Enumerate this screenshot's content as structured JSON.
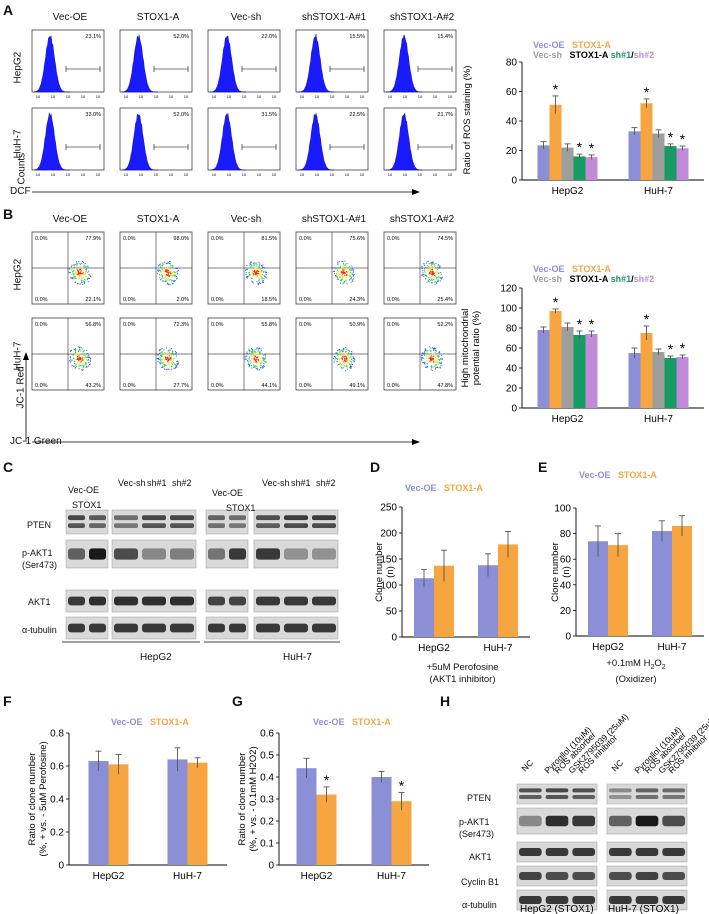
{
  "panel_letters": [
    "A",
    "B",
    "C",
    "D",
    "E",
    "F",
    "G",
    "H"
  ],
  "flow_columns": [
    "Vec-OE",
    "STOX1-A",
    "Vec-sh",
    "shSTOX1-A#1",
    "shSTOX1-A#2"
  ],
  "flow_rows": [
    "HepG2",
    "HuH-7"
  ],
  "panelA": {
    "ylab": "Counts",
    "xlab": "DCF",
    "percents": [
      [
        "23.1%",
        "52.0%",
        "22.0%",
        "15.5%",
        "15.4%"
      ],
      [
        "33.0%",
        "52.0%",
        "31.5%",
        "22.5%",
        "21.7%"
      ]
    ],
    "tick": "10"
  },
  "panelB": {
    "ylab": "JC-1 Red",
    "xlab": "JC-1 Green",
    "quads": [
      [
        [
          "0.0%",
          "77.9%",
          "0.0%",
          "22.1%"
        ],
        [
          "0.0%",
          "98.0%",
          "0.0%",
          "2.0%"
        ],
        [
          "0.0%",
          "81.5%",
          "0.0%",
          "18.5%"
        ],
        [
          "0.0%",
          "75.6%",
          "0.0%",
          "24.3%"
        ],
        [
          "0.0%",
          "74.5%",
          "0.0%",
          "25.4%"
        ]
      ],
      [
        [
          "0.0%",
          "56.8%",
          "0.0%",
          "43.2%"
        ],
        [
          "0.0%",
          "72.3%",
          "0.0%",
          "27.7%"
        ],
        [
          "0.0%",
          "55.8%",
          "0.0%",
          "44.1%"
        ],
        [
          "0.0%",
          "50.9%",
          "0.0%",
          "49.1%"
        ],
        [
          "0.0%",
          "52.2%",
          "0.0%",
          "47.8%"
        ]
      ]
    ]
  },
  "legend5": {
    "a": "Vec-OE",
    "b": "STOX1-A",
    "c": "Vec-sh",
    "d": "STOX1-A",
    "e": "sh#1",
    "f": "/",
    "g": "sh#2"
  },
  "legend2": {
    "a": "Vec-OE",
    "b": "STOX1-A"
  },
  "colors": {
    "blue": "#8a8fd6",
    "orange": "#f7a540",
    "gray": "#9e9e9e",
    "green": "#169b62",
    "purple": "#c08bd8",
    "hist": "#1a1aff"
  },
  "panelC": {
    "groups": [
      "HepG2",
      "HuH-7"
    ],
    "lanes_left": [
      "Vec-OE",
      "STOX1",
      "Vec-sh",
      "sh#1",
      "sh#2"
    ],
    "lanes_right": [
      "Vec-OE",
      "STOX1",
      "Vec-sh",
      "sh#1",
      "sh#2"
    ],
    "rows": [
      "PTEN",
      "p-AKT1",
      "(Ser473)",
      "AKT1",
      "α-tubulin"
    ]
  },
  "panelD_note": [
    "+5uM Perofosine",
    "(AKT1 inhibitor)"
  ],
  "panelE_note": [
    "+0.1mM H",
    "2",
    "O",
    "2",
    "(Oxidizer)"
  ],
  "panelH": {
    "lanes": [
      "NC",
      "Pyrogllol (10uM)",
      "ROS absorber",
      "GSK2795039 (25uM)",
      "ROS inhibitor"
    ],
    "rows": [
      "PTEN",
      "p-AKT1",
      "(Ser473)",
      "AKT1",
      "Cyclin B1",
      "α-tubulin"
    ],
    "groups": [
      "HepG2 (STOX1)",
      "HuH-7 (STOX1)"
    ]
  },
  "star": "*",
  "chart_data": [
    {
      "id": "A",
      "type": "bar",
      "title": "",
      "ylabel": "Ratio of ROS staining (%)",
      "categories": [
        "HepG2",
        "HuH-7"
      ],
      "ylim": [
        0,
        80
      ],
      "yticks": [
        0,
        20,
        40,
        60,
        80
      ],
      "series": [
        {
          "name": "Vec-OE",
          "values": [
            23.5,
            33
          ],
          "err": [
            2.5,
            2.5
          ]
        },
        {
          "name": "STOX1-A",
          "values": [
            51,
            52
          ],
          "err": [
            6,
            3
          ]
        },
        {
          "name": "Vec-sh",
          "values": [
            22,
            31.5
          ],
          "err": [
            2.5,
            2.5
          ]
        },
        {
          "name": "sh#1",
          "values": [
            16,
            23
          ],
          "err": [
            1.5,
            1.5
          ]
        },
        {
          "name": "sh#2",
          "values": [
            15.5,
            21.5
          ],
          "err": [
            1.5,
            1.5
          ]
        }
      ],
      "stars": [
        [
          0,
          1,
          0,
          1,
          1
        ],
        [
          0,
          1,
          0,
          1,
          1
        ]
      ]
    },
    {
      "id": "B",
      "type": "bar",
      "title": "",
      "ylabel": "High mitochondrial potential ratio (%)",
      "categories": [
        "HepG2",
        "HuH-7"
      ],
      "ylim": [
        0,
        120
      ],
      "yticks": [
        0,
        20,
        40,
        60,
        80,
        100,
        120
      ],
      "series": [
        {
          "name": "Vec-OE",
          "values": [
            78,
            55
          ],
          "err": [
            3,
            5
          ]
        },
        {
          "name": "STOX1-A",
          "values": [
            97,
            75
          ],
          "err": [
            2,
            7
          ]
        },
        {
          "name": "Vec-sh",
          "values": [
            81,
            56
          ],
          "err": [
            4,
            3
          ]
        },
        {
          "name": "sh#1",
          "values": [
            73,
            50
          ],
          "err": [
            4,
            2
          ]
        },
        {
          "name": "sh#2",
          "values": [
            74,
            51
          ],
          "err": [
            3,
            2
          ]
        }
      ],
      "stars": [
        [
          0,
          1,
          0,
          1,
          1
        ],
        [
          0,
          1,
          0,
          1,
          1
        ]
      ]
    },
    {
      "id": "D",
      "type": "bar",
      "ylabel": "Clone number (n)",
      "categories": [
        "HepG2",
        "HuH-7"
      ],
      "ylim": [
        0,
        250
      ],
      "yticks": [
        0,
        50,
        100,
        150,
        200,
        250
      ],
      "series": [
        {
          "name": "Vec-OE",
          "values": [
            113,
            138
          ],
          "err": [
            17,
            22
          ]
        },
        {
          "name": "STOX1-A",
          "values": [
            137,
            178
          ],
          "err": [
            30,
            25
          ]
        }
      ],
      "stars": [
        [
          0,
          0
        ],
        [
          0,
          0
        ]
      ]
    },
    {
      "id": "E",
      "type": "bar",
      "ylabel": "Clone number (n)",
      "categories": [
        "HepG2",
        "HuH-7"
      ],
      "ylim": [
        0,
        100
      ],
      "yticks": [
        0,
        20,
        40,
        60,
        80,
        100
      ],
      "series": [
        {
          "name": "Vec-OE",
          "values": [
            74,
            82
          ],
          "err": [
            12,
            8
          ]
        },
        {
          "name": "STOX1-A",
          "values": [
            71,
            86
          ],
          "err": [
            9,
            8
          ]
        }
      ],
      "stars": [
        [
          0,
          0
        ],
        [
          0,
          0
        ]
      ]
    },
    {
      "id": "F",
      "type": "bar",
      "ylabel": "Ratio of clone number (%, + vs. - 5uM Perofosine)",
      "categories": [
        "HepG2",
        "HuH-7"
      ],
      "ylim": [
        0,
        0.8
      ],
      "yticks": [
        0.0,
        0.2,
        0.4,
        0.6,
        0.8
      ],
      "series": [
        {
          "name": "Vec-OE",
          "values": [
            0.63,
            0.64
          ],
          "err": [
            0.06,
            0.07
          ]
        },
        {
          "name": "STOX1-A",
          "values": [
            0.61,
            0.62
          ],
          "err": [
            0.06,
            0.03
          ]
        }
      ],
      "stars": [
        [
          0,
          0
        ],
        [
          0,
          0
        ]
      ]
    },
    {
      "id": "G",
      "type": "bar",
      "ylabel": "Ratio of clone number (%, + vs. - 0.1mM H2O2)",
      "categories": [
        "HepG2",
        "HuH-7"
      ],
      "ylim": [
        0,
        0.6
      ],
      "yticks": [
        0.0,
        0.1,
        0.2,
        0.3,
        0.4,
        0.5,
        0.6
      ],
      "series": [
        {
          "name": "Vec-OE",
          "values": [
            0.44,
            0.4
          ],
          "err": [
            0.045,
            0.025
          ]
        },
        {
          "name": "STOX1-A",
          "values": [
            0.32,
            0.29
          ],
          "err": [
            0.035,
            0.04
          ]
        }
      ],
      "stars": [
        [
          0,
          1
        ],
        [
          0,
          1
        ]
      ]
    }
  ]
}
